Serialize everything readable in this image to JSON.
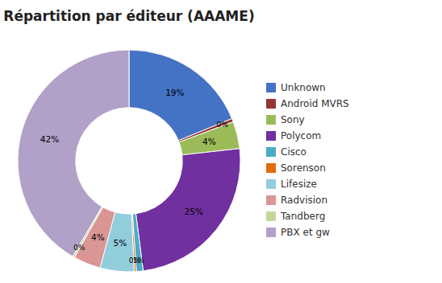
{
  "chart_data": {
    "type": "pie",
    "title": "Répartition par éditeur (AAAME)",
    "categories": [
      "Unknown",
      "Android MVRS",
      "Sony",
      "Polycom",
      "Cisco",
      "Sorenson",
      "Lifesize",
      "Radvision",
      "Tandberg",
      "PBX et gw"
    ],
    "values": [
      19,
      0.5,
      4,
      25,
      1,
      0.3,
      5,
      4,
      0.3,
      42
    ],
    "value_labels": [
      "19%",
      "0%",
      "4%",
      "25%",
      "1%",
      "0%",
      "5%",
      "4%",
      "0%",
      "42%"
    ],
    "colors": [
      "#4472C4",
      "#943634",
      "#9BBB59",
      "#7030A0",
      "#4BACC6",
      "#E36C0A",
      "#92CDDC",
      "#D99694",
      "#C4D79B",
      "#B1A0C7"
    ],
    "data_labels": true,
    "legend": "right"
  }
}
